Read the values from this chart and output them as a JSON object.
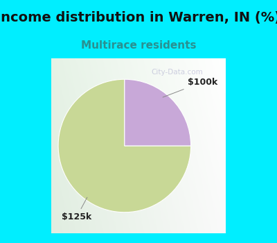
{
  "title": "Income distribution in Warren, IN (%)",
  "subtitle": "Multirace residents",
  "title_fontsize": 14,
  "subtitle_fontsize": 11,
  "title_color": "#111111",
  "subtitle_color": "#2a9090",
  "bg_color": "#00eeff",
  "chart_bg_left": "#d8eedd",
  "chart_bg_right": "#f5f8f0",
  "slices": [
    {
      "label": "$125k",
      "value": 75,
      "color": "#c8d896"
    },
    {
      "label": "$100k",
      "value": 25,
      "color": "#c8a8d8"
    }
  ],
  "startangle": 90,
  "label_fontsize": 9,
  "watermark": "City-Data.com",
  "border_width": 8
}
